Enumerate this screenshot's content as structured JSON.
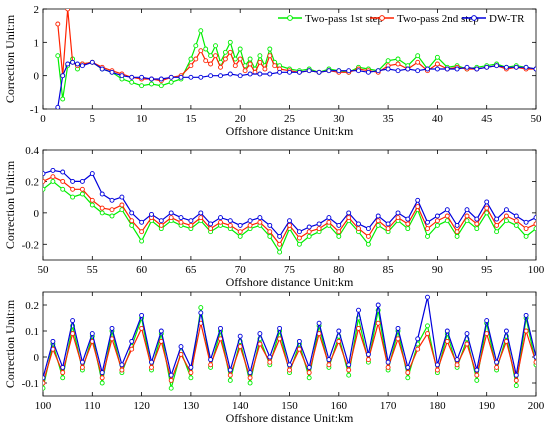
{
  "chart_data": [
    {
      "type": "line",
      "xlabel": "Offshore distance Unit:km",
      "ylabel": "Correction Unit:m",
      "xlim": [
        0,
        50
      ],
      "ylim": [
        -1,
        2
      ],
      "xticks": [
        0,
        5,
        10,
        15,
        20,
        25,
        30,
        35,
        40,
        45,
        50
      ],
      "yticks": [
        -1,
        0,
        1,
        2
      ],
      "legend_position": "top-right",
      "series": [
        {
          "name": "Two-pass 1st step",
          "color": "#00ee00",
          "x": [
            1.5,
            2,
            2.5,
            3,
            3.5,
            4,
            5,
            6,
            7,
            8,
            9,
            10,
            11,
            12,
            13,
            14,
            15,
            15.5,
            16,
            16.5,
            17,
            17.5,
            18,
            18.5,
            19,
            19.5,
            20,
            20.5,
            21,
            21.5,
            22,
            22.5,
            23,
            23.5,
            24,
            25,
            26,
            27,
            28,
            29,
            30,
            31,
            32,
            33,
            34,
            35,
            36,
            37,
            38,
            39,
            40,
            41,
            42,
            43,
            44,
            45,
            46,
            47,
            48,
            49,
            50
          ],
          "y": [
            0.6,
            -0.7,
            0.3,
            0.5,
            0.2,
            0.35,
            0.4,
            0.2,
            0.1,
            -0.1,
            -0.2,
            -0.3,
            -0.25,
            -0.3,
            -0.2,
            -0.1,
            0.5,
            0.9,
            1.35,
            0.8,
            0.6,
            0.9,
            0.4,
            0.7,
            1.0,
            0.5,
            0.8,
            0.3,
            0.5,
            0.2,
            0.6,
            0.3,
            0.8,
            0.4,
            0.3,
            0.2,
            0.15,
            0.2,
            0.1,
            0.2,
            0.15,
            0.1,
            0.25,
            0.2,
            0.15,
            0.45,
            0.5,
            0.3,
            0.6,
            0.2,
            0.55,
            0.25,
            0.3,
            0.2,
            0.25,
            0.3,
            0.35,
            0.25,
            0.3,
            0.25,
            0.2
          ]
        },
        {
          "name": "Two-pass 2nd step",
          "color": "#ff2200",
          "x": [
            1.5,
            2,
            2.5,
            3,
            3.5,
            4,
            5,
            6,
            7,
            8,
            9,
            10,
            11,
            12,
            13,
            14,
            15,
            15.5,
            16,
            16.5,
            17,
            17.5,
            18,
            18.5,
            19,
            19.5,
            20,
            20.5,
            21,
            21.5,
            22,
            22.5,
            23,
            23.5,
            24,
            25,
            26,
            27,
            28,
            29,
            30,
            31,
            32,
            33,
            34,
            35,
            36,
            37,
            38,
            39,
            40,
            41,
            42,
            43,
            44,
            45,
            46,
            47,
            48,
            49,
            50
          ],
          "y": [
            1.55,
            0.0,
            2.0,
            0.4,
            0.3,
            0.35,
            0.4,
            0.25,
            0.15,
            0.05,
            -0.05,
            -0.1,
            -0.1,
            -0.15,
            -0.05,
            0.0,
            0.3,
            0.5,
            0.75,
            0.45,
            0.35,
            0.6,
            0.25,
            0.5,
            0.7,
            0.3,
            0.5,
            0.15,
            0.35,
            0.1,
            0.4,
            0.2,
            0.6,
            0.3,
            0.2,
            0.15,
            0.1,
            0.15,
            0.1,
            0.15,
            0.1,
            0.1,
            0.2,
            0.15,
            0.1,
            0.3,
            0.35,
            0.2,
            0.4,
            0.15,
            0.35,
            0.2,
            0.25,
            0.2,
            0.2,
            0.25,
            0.3,
            0.2,
            0.25,
            0.2,
            0.2
          ]
        },
        {
          "name": "DW-TR",
          "color": "#0000dd",
          "x": [
            1.5,
            2,
            2.5,
            3,
            3.5,
            4,
            5,
            6,
            7,
            8,
            9,
            10,
            11,
            12,
            13,
            14,
            15,
            16,
            17,
            18,
            19,
            20,
            21,
            22,
            23,
            24,
            25,
            26,
            27,
            28,
            29,
            30,
            31,
            32,
            33,
            34,
            35,
            36,
            37,
            38,
            39,
            40,
            41,
            42,
            43,
            44,
            45,
            46,
            47,
            48,
            49,
            50
          ],
          "y": [
            -0.95,
            0.0,
            0.35,
            0.4,
            0.35,
            0.3,
            0.4,
            0.2,
            0.1,
            0.0,
            -0.05,
            -0.05,
            -0.1,
            -0.1,
            -0.05,
            -0.05,
            -0.05,
            -0.05,
            0.0,
            0.0,
            0.05,
            0.0,
            0.05,
            0.05,
            0.05,
            0.1,
            0.1,
            0.1,
            0.15,
            0.1,
            0.15,
            0.15,
            0.15,
            0.15,
            0.1,
            0.15,
            0.2,
            0.15,
            0.2,
            0.15,
            0.2,
            0.2,
            0.2,
            0.2,
            0.25,
            0.2,
            0.25,
            0.3,
            0.25,
            0.25,
            0.25,
            0.2
          ]
        }
      ]
    },
    {
      "type": "line",
      "xlabel": "Offshore distance Unit:km",
      "ylabel": "Correction Unit:m",
      "xlim": [
        50,
        100
      ],
      "ylim": [
        -0.3,
        0.4
      ],
      "xticks": [
        50,
        55,
        60,
        65,
        70,
        75,
        80,
        85,
        90,
        95,
        100
      ],
      "yticks": [
        -0.2,
        0,
        0.2,
        0.4
      ],
      "series": [
        {
          "name": "Two-pass 1st step",
          "color": "#00ee00",
          "x": [
            50,
            51,
            52,
            53,
            54,
            55,
            56,
            57,
            58,
            59,
            60,
            61,
            62,
            63,
            64,
            65,
            66,
            67,
            68,
            69,
            70,
            71,
            72,
            73,
            74,
            75,
            76,
            77,
            78,
            79,
            80,
            81,
            82,
            83,
            84,
            85,
            86,
            87,
            88,
            89,
            90,
            91,
            92,
            93,
            94,
            95,
            96,
            97,
            98,
            99,
            100
          ],
          "y": [
            0.15,
            0.2,
            0.15,
            0.1,
            0.12,
            0.05,
            0.0,
            -0.02,
            0.02,
            -0.08,
            -0.18,
            -0.05,
            -0.1,
            -0.05,
            -0.08,
            -0.1,
            -0.05,
            -0.12,
            -0.08,
            -0.1,
            -0.15,
            -0.1,
            -0.08,
            -0.15,
            -0.25,
            -0.1,
            -0.2,
            -0.15,
            -0.12,
            -0.08,
            -0.15,
            -0.05,
            -0.12,
            -0.2,
            -0.08,
            -0.12,
            -0.05,
            -0.1,
            0.02,
            -0.15,
            -0.08,
            -0.05,
            -0.15,
            -0.05,
            -0.1,
            0.0,
            -0.12,
            -0.05,
            -0.08,
            -0.15,
            -0.1
          ]
        },
        {
          "name": "Two-pass 2nd step",
          "color": "#ff2200",
          "x": [
            50,
            51,
            52,
            53,
            54,
            55,
            56,
            57,
            58,
            59,
            60,
            61,
            62,
            63,
            64,
            65,
            66,
            67,
            68,
            69,
            70,
            71,
            72,
            73,
            74,
            75,
            76,
            77,
            78,
            79,
            80,
            81,
            82,
            83,
            84,
            85,
            86,
            87,
            88,
            89,
            90,
            91,
            92,
            93,
            94,
            95,
            96,
            97,
            98,
            99,
            100
          ],
          "y": [
            0.2,
            0.23,
            0.2,
            0.15,
            0.15,
            0.08,
            0.03,
            0.02,
            0.05,
            -0.05,
            -0.12,
            -0.03,
            -0.08,
            -0.03,
            -0.06,
            -0.08,
            -0.03,
            -0.1,
            -0.06,
            -0.08,
            -0.12,
            -0.08,
            -0.06,
            -0.12,
            -0.2,
            -0.08,
            -0.16,
            -0.12,
            -0.1,
            -0.06,
            -0.12,
            -0.03,
            -0.1,
            -0.15,
            -0.05,
            -0.1,
            -0.03,
            -0.07,
            0.04,
            -0.1,
            -0.05,
            -0.02,
            -0.12,
            -0.02,
            -0.07,
            0.03,
            -0.08,
            -0.02,
            -0.05,
            -0.1,
            -0.07
          ]
        },
        {
          "name": "DW-TR",
          "color": "#0000dd",
          "x": [
            50,
            51,
            52,
            53,
            54,
            55,
            56,
            57,
            58,
            59,
            60,
            61,
            62,
            63,
            64,
            65,
            66,
            67,
            68,
            69,
            70,
            71,
            72,
            73,
            74,
            75,
            76,
            77,
            78,
            79,
            80,
            81,
            82,
            83,
            84,
            85,
            86,
            87,
            88,
            89,
            90,
            91,
            92,
            93,
            94,
            95,
            96,
            97,
            98,
            99,
            100
          ],
          "y": [
            0.25,
            0.27,
            0.26,
            0.2,
            0.2,
            0.25,
            0.12,
            0.08,
            0.1,
            0.0,
            -0.06,
            -0.01,
            -0.05,
            0.0,
            -0.03,
            -0.05,
            0.0,
            -0.07,
            -0.03,
            -0.05,
            -0.08,
            -0.05,
            -0.03,
            -0.08,
            -0.15,
            -0.05,
            -0.12,
            -0.09,
            -0.07,
            -0.03,
            -0.08,
            0.0,
            -0.07,
            -0.1,
            -0.02,
            -0.07,
            0.0,
            -0.04,
            0.08,
            -0.06,
            -0.02,
            0.02,
            -0.08,
            0.02,
            -0.04,
            0.07,
            -0.04,
            0.02,
            -0.02,
            -0.06,
            -0.03
          ]
        }
      ]
    },
    {
      "type": "line",
      "xlabel": "Offshore distance Unit:km",
      "ylabel": "Correction Unit:m",
      "xlim": [
        100,
        200
      ],
      "ylim": [
        -0.15,
        0.25
      ],
      "xticks": [
        100,
        110,
        120,
        130,
        140,
        150,
        160,
        170,
        180,
        190,
        200
      ],
      "yticks": [
        -0.1,
        0,
        0.1,
        0.2
      ],
      "series": [
        {
          "name": "Two-pass 1st step",
          "color": "#00ee00",
          "x": [
            100,
            102,
            104,
            106,
            108,
            110,
            112,
            114,
            116,
            118,
            120,
            122,
            124,
            126,
            128,
            130,
            132,
            134,
            136,
            138,
            140,
            142,
            144,
            146,
            148,
            150,
            152,
            154,
            156,
            158,
            160,
            162,
            164,
            166,
            168,
            170,
            172,
            174,
            176,
            178,
            180,
            182,
            184,
            186,
            188,
            190,
            192,
            194,
            196,
            198,
            200
          ],
          "y": [
            -0.12,
            0.05,
            -0.08,
            0.12,
            -0.05,
            0.08,
            -0.1,
            0.1,
            -0.06,
            0.04,
            0.15,
            -0.05,
            0.09,
            -0.12,
            0.02,
            -0.08,
            0.19,
            -0.04,
            0.1,
            -0.09,
            0.06,
            -0.1,
            0.07,
            -0.03,
            0.1,
            -0.06,
            0.05,
            -0.08,
            0.12,
            -0.04,
            0.08,
            -0.07,
            0.15,
            -0.02,
            0.18,
            -0.05,
            0.1,
            -0.08,
            0.05,
            0.12,
            -0.06,
            0.09,
            -0.04,
            0.07,
            -0.09,
            0.13,
            -0.05,
            0.08,
            -0.11,
            0.15,
            -0.03
          ]
        },
        {
          "name": "Two-pass 2nd step",
          "color": "#ff2200",
          "x": [
            100,
            102,
            104,
            106,
            108,
            110,
            112,
            114,
            116,
            118,
            120,
            122,
            124,
            126,
            128,
            130,
            132,
            134,
            136,
            138,
            140,
            142,
            144,
            146,
            148,
            150,
            152,
            154,
            156,
            158,
            160,
            162,
            164,
            166,
            168,
            170,
            172,
            174,
            176,
            178,
            180,
            182,
            184,
            186,
            188,
            190,
            192,
            194,
            196,
            198,
            200
          ],
          "y": [
            -0.1,
            0.03,
            -0.06,
            0.09,
            -0.04,
            0.06,
            -0.08,
            0.07,
            -0.05,
            0.03,
            0.11,
            -0.04,
            0.06,
            -0.09,
            0.01,
            -0.06,
            0.13,
            -0.03,
            0.07,
            -0.07,
            0.04,
            -0.08,
            0.05,
            -0.02,
            0.07,
            -0.05,
            0.03,
            -0.06,
            0.09,
            -0.03,
            0.06,
            -0.05,
            0.11,
            -0.01,
            0.13,
            -0.04,
            0.07,
            -0.06,
            0.03,
            0.09,
            -0.05,
            0.06,
            -0.03,
            0.05,
            -0.07,
            0.09,
            -0.04,
            0.06,
            -0.09,
            0.1,
            -0.02
          ]
        },
        {
          "name": "DW-TR",
          "color": "#0000dd",
          "x": [
            100,
            102,
            104,
            106,
            108,
            110,
            112,
            114,
            116,
            118,
            120,
            122,
            124,
            126,
            128,
            130,
            132,
            134,
            136,
            138,
            140,
            142,
            144,
            146,
            148,
            150,
            152,
            154,
            156,
            158,
            160,
            162,
            164,
            166,
            168,
            170,
            172,
            174,
            176,
            178,
            180,
            182,
            184,
            186,
            188,
            190,
            192,
            194,
            196,
            198,
            200
          ],
          "y": [
            -0.08,
            0.06,
            -0.04,
            0.14,
            -0.02,
            0.09,
            -0.06,
            0.11,
            -0.03,
            0.06,
            0.16,
            -0.02,
            0.1,
            -0.07,
            0.04,
            -0.04,
            0.17,
            -0.01,
            0.11,
            -0.05,
            0.08,
            -0.06,
            0.09,
            0.0,
            0.11,
            -0.03,
            0.06,
            -0.04,
            0.13,
            -0.01,
            0.1,
            -0.03,
            0.18,
            0.01,
            0.2,
            -0.02,
            0.11,
            -0.04,
            0.07,
            0.23,
            -0.03,
            0.1,
            -0.01,
            0.09,
            -0.05,
            0.14,
            -0.02,
            0.1,
            -0.07,
            0.16,
            0.0
          ]
        }
      ]
    }
  ]
}
